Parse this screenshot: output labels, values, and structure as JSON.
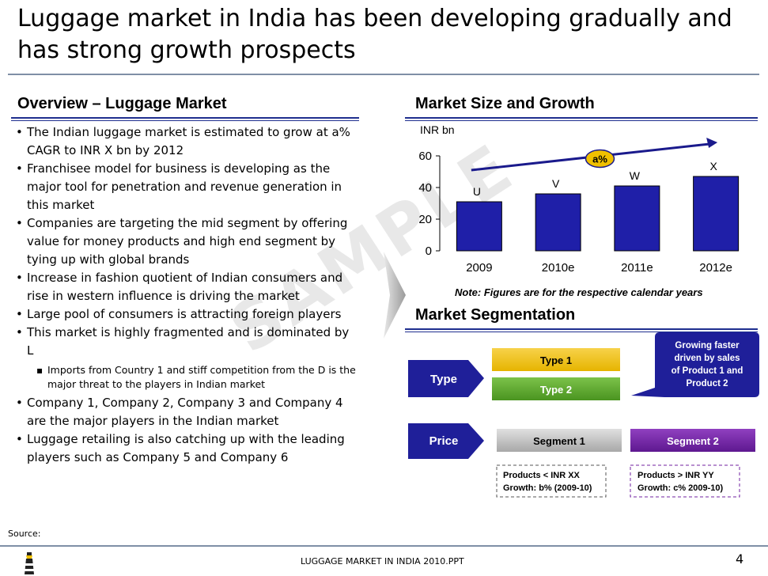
{
  "title": "Luggage market in India has been developing gradually and has strong growth prospects",
  "overview": {
    "heading": "Overview – Luggage Market",
    "bullets": [
      "The Indian luggage market is estimated to grow at a% CAGR to INR X bn by 2012",
      "Franchisee model for business is developing as the major tool for penetration and revenue generation in this market",
      "Companies are targeting the mid segment by offering value for money products and high end segment by tying up with global brands",
      "Increase in fashion quotient of Indian consumers and rise in western influence is driving the market",
      "Large pool of consumers is attracting foreign players",
      "This market is highly fragmented and is dominated by L"
    ],
    "sub_bullet": "Imports from Country 1 and stiff competition from the D is the major threat to the players in Indian market",
    "bullets_after": [
      "Company 1, Company 2, Company 3 and Company 4 are the major players in the Indian market",
      "Luggage retailing is also catching up with the leading players such as Company 5 and Company 6"
    ]
  },
  "watermark": "SAMPLE",
  "market_size": {
    "heading": "Market Size and Growth",
    "note": "Note: Figures are for the respective calendar years",
    "cagr_label": "a%"
  },
  "chart_data": {
    "type": "bar",
    "ylabel": "INR bn",
    "ylim": [
      0,
      60
    ],
    "yticks": [
      0,
      20,
      40,
      60
    ],
    "categories": [
      "2009",
      "2010e",
      "2011e",
      "2012e"
    ],
    "values": [
      31,
      36,
      41,
      47
    ],
    "data_labels": [
      "U",
      "V",
      "W",
      "X"
    ],
    "bar_color": "#1f1fa8",
    "grid": false
  },
  "segmentation": {
    "heading": "Market Segmentation",
    "type_label": "Type",
    "price_label": "Price",
    "type1": "Type 1",
    "type2": "Type 2",
    "segment1": "Segment 1",
    "segment2": "Segment 2",
    "callout": "Growing faster driven by sales of Product 1 and Product 2",
    "seg1_note_line1": "Products < INR XX",
    "seg1_note_line2": "Growth: b% (2009-10)",
    "seg2_note_line1": "Products >  INR YY",
    "seg2_note_line2": "Growth: c% 2009-10)"
  },
  "footer": {
    "source": "Source:",
    "file": "LUGGAGE MARKET IN INDIA 2010.PPT",
    "page": "4"
  },
  "colors": {
    "navy": "#1a1a8c",
    "yellow": "#f0c000",
    "green": "#5aa02c",
    "gray": "#c0c0c0",
    "purple": "#7020a0"
  }
}
